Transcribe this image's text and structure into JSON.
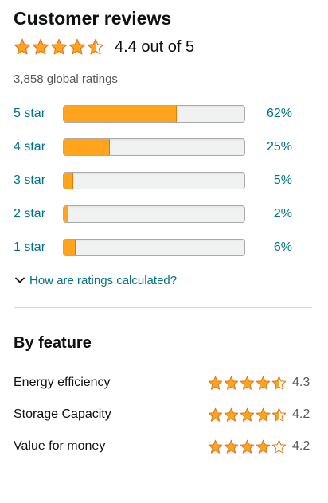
{
  "reviews": {
    "title": "Customer reviews",
    "rating_stars": 4.5,
    "overall_text": "4.4 out of 5",
    "global_ratings": "3,858 global ratings",
    "star_color": "#ffa41c",
    "link_color": "#007185",
    "histogram": [
      {
        "label": "5 star",
        "percent_text": "62%",
        "fraction": 0.62
      },
      {
        "label": "4 star",
        "percent_text": "25%",
        "fraction": 0.25
      },
      {
        "label": "3 star",
        "percent_text": "5%",
        "fraction": 0.05
      },
      {
        "label": "2 star",
        "percent_text": "2%",
        "fraction": 0.02
      },
      {
        "label": "1 star",
        "percent_text": "6%",
        "fraction": 0.06
      }
    ],
    "calc_link": "How are ratings calculated?"
  },
  "features": {
    "title": "By feature",
    "items": [
      {
        "name": "Energy efficiency",
        "stars": 4.5,
        "value": "4.3"
      },
      {
        "name": "Storage Capacity",
        "stars": 4.5,
        "value": "4.2"
      },
      {
        "name": "Value for money",
        "stars": 4,
        "value": "4.2"
      }
    ]
  }
}
